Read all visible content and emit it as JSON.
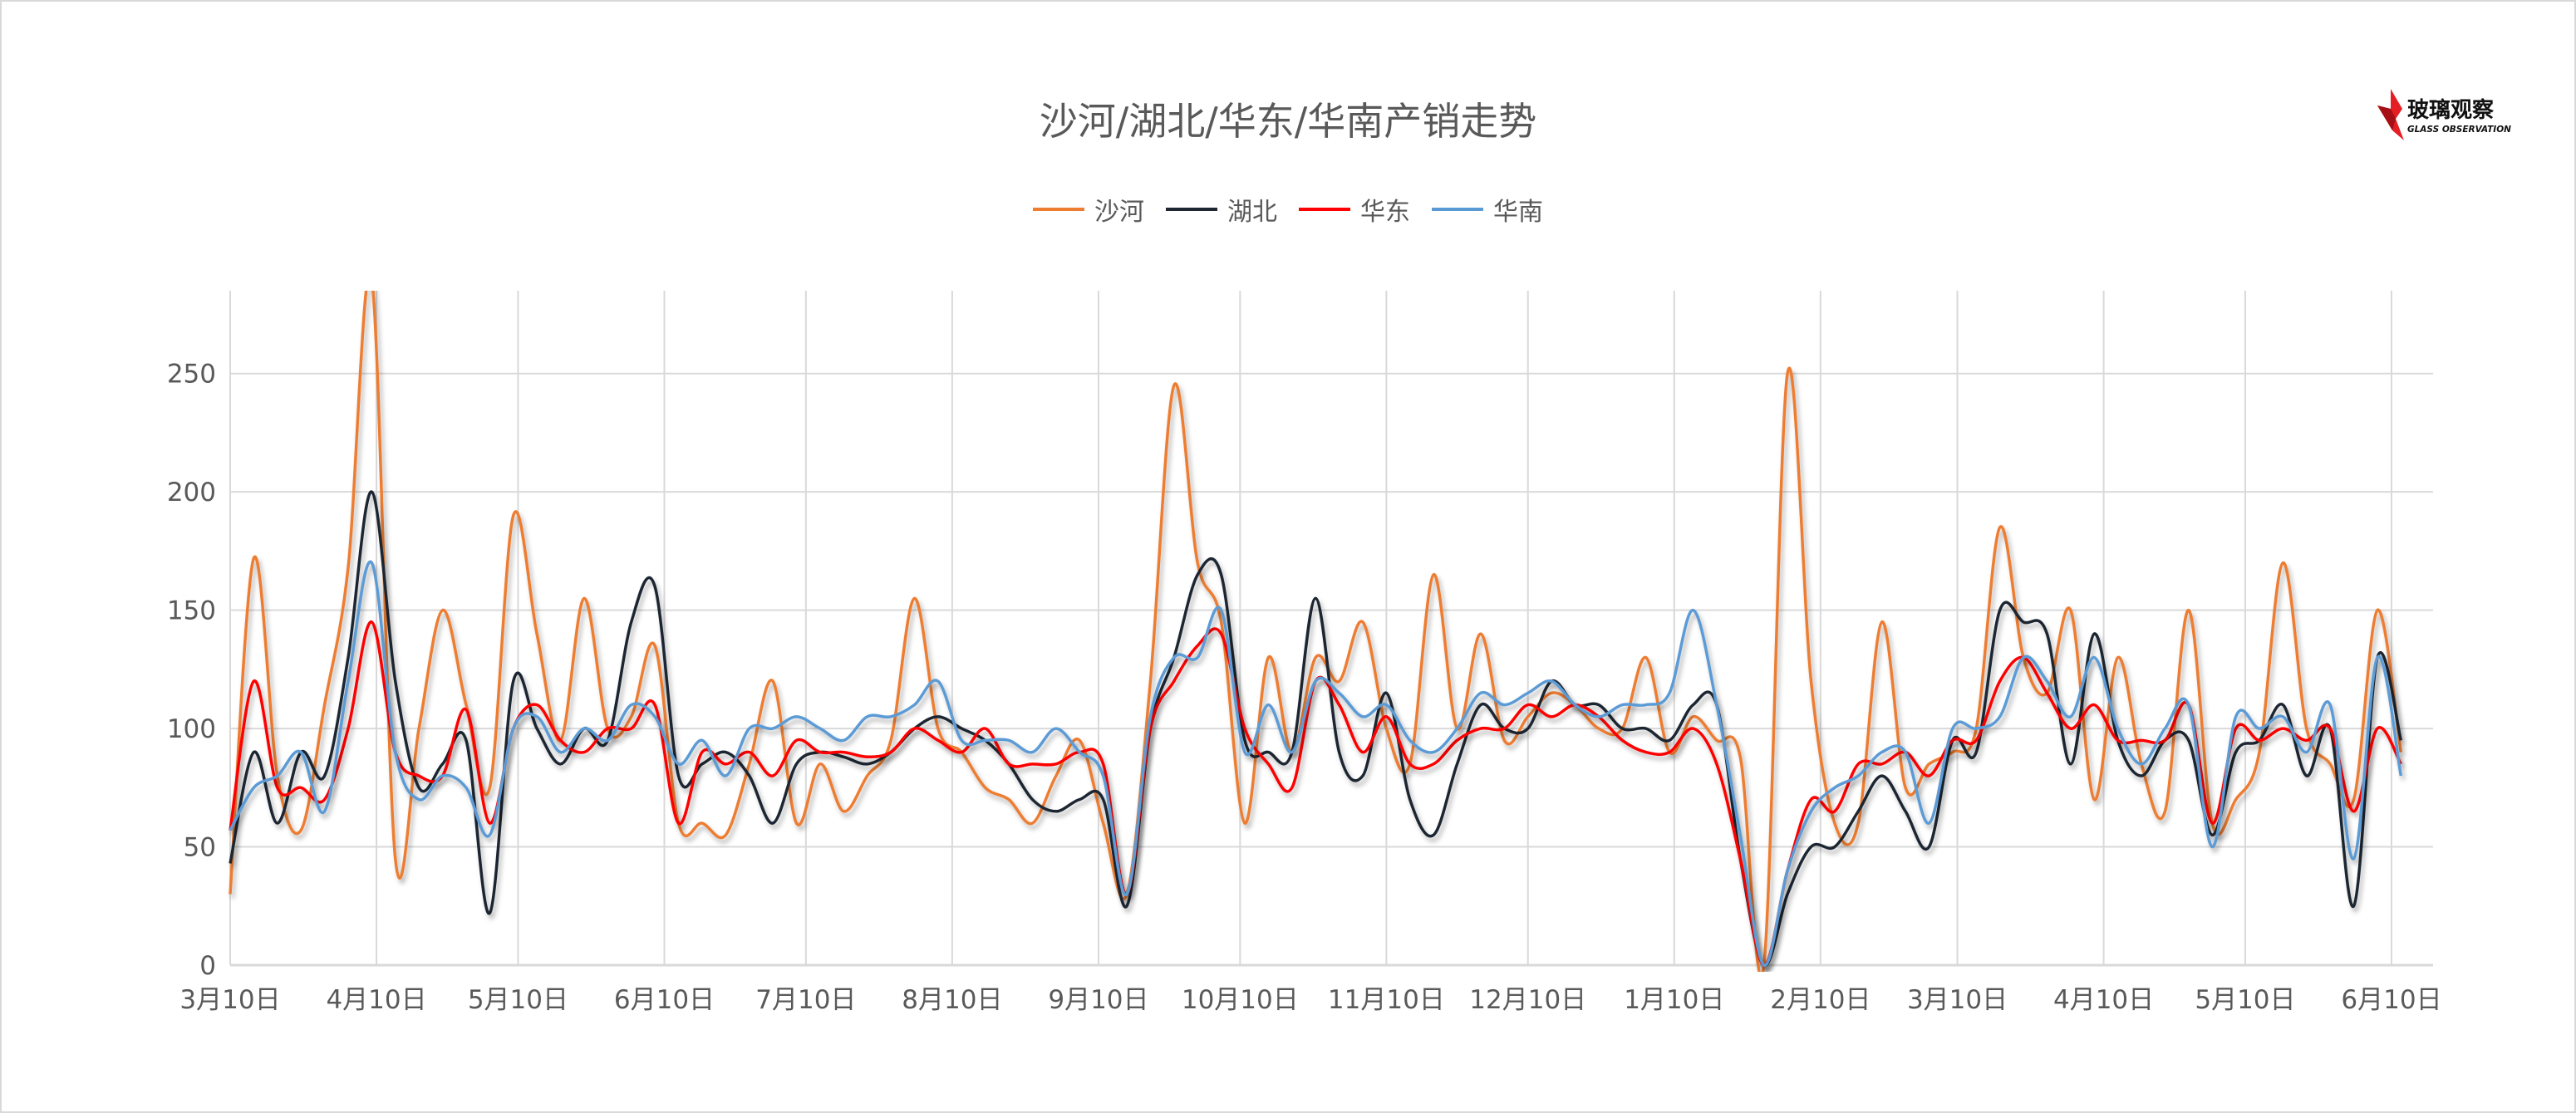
{
  "logo": {
    "text_cn": "玻璃观察",
    "text_en": "GLASS OBSERVATION"
  },
  "chart_data": {
    "type": "line",
    "title": "沙河/湖北/华东/华南产销走势",
    "xlabel": "",
    "ylabel": "",
    "ylim": [
      0,
      285
    ],
    "yticks": [
      0,
      50,
      100,
      150,
      200,
      250
    ],
    "grid": true,
    "legend_position": "top",
    "x_tick_labels": [
      {
        "date": "2023-03-10",
        "label": "3月10日"
      },
      {
        "date": "2023-04-10",
        "label": "4月10日"
      },
      {
        "date": "2023-05-10",
        "label": "5月10日"
      },
      {
        "date": "2023-06-10",
        "label": "6月10日"
      },
      {
        "date": "2023-07-10",
        "label": "7月10日"
      },
      {
        "date": "2023-08-10",
        "label": "8月10日"
      },
      {
        "date": "2023-09-10",
        "label": "9月10日"
      },
      {
        "date": "2023-10-10",
        "label": "10月10日"
      },
      {
        "date": "2023-11-10",
        "label": "11月10日"
      },
      {
        "date": "2023-12-10",
        "label": "12月10日"
      },
      {
        "date": "2024-01-10",
        "label": "1月10日"
      },
      {
        "date": "2024-02-10",
        "label": "2月10日"
      },
      {
        "date": "2024-03-10",
        "label": "3月10日"
      },
      {
        "date": "2024-04-10",
        "label": "4月10日"
      },
      {
        "date": "2024-05-10",
        "label": "5月10日"
      },
      {
        "date": "2024-06-10",
        "label": "6月10日"
      }
    ],
    "x": [
      "2023-03-10",
      "2023-03-15",
      "2023-03-20",
      "2023-03-25",
      "2023-03-30",
      "2023-04-04",
      "2023-04-09",
      "2023-04-14",
      "2023-04-19",
      "2023-04-24",
      "2023-04-29",
      "2023-05-04",
      "2023-05-09",
      "2023-05-14",
      "2023-05-19",
      "2023-05-24",
      "2023-05-29",
      "2023-06-03",
      "2023-06-08",
      "2023-06-13",
      "2023-06-18",
      "2023-06-23",
      "2023-06-28",
      "2023-07-03",
      "2023-07-08",
      "2023-07-13",
      "2023-07-18",
      "2023-07-23",
      "2023-07-28",
      "2023-08-02",
      "2023-08-07",
      "2023-08-12",
      "2023-08-17",
      "2023-08-22",
      "2023-08-27",
      "2023-09-01",
      "2023-09-06",
      "2023-09-11",
      "2023-09-16",
      "2023-09-21",
      "2023-09-26",
      "2023-10-01",
      "2023-10-06",
      "2023-10-11",
      "2023-10-16",
      "2023-10-21",
      "2023-10-26",
      "2023-10-31",
      "2023-11-05",
      "2023-11-10",
      "2023-11-15",
      "2023-11-20",
      "2023-11-25",
      "2023-11-30",
      "2023-12-05",
      "2023-12-10",
      "2023-12-15",
      "2023-12-20",
      "2023-12-25",
      "2023-12-30",
      "2024-01-04",
      "2024-01-09",
      "2024-01-14",
      "2024-01-19",
      "2024-01-24",
      "2024-01-29",
      "2024-02-03",
      "2024-02-08",
      "2024-02-13",
      "2024-02-18",
      "2024-02-23",
      "2024-02-28",
      "2024-03-04",
      "2024-03-09",
      "2024-03-14",
      "2024-03-19",
      "2024-03-24",
      "2024-03-29",
      "2024-04-03",
      "2024-04-08",
      "2024-04-13",
      "2024-04-18",
      "2024-04-23",
      "2024-04-28",
      "2024-05-03",
      "2024-05-08",
      "2024-05-13",
      "2024-05-18",
      "2024-05-23",
      "2024-05-28",
      "2024-06-02",
      "2024-06-07",
      "2024-06-12"
    ],
    "series": [
      {
        "name": "沙河",
        "color": "#ED7D31",
        "values": [
          30,
          172,
          80,
          57,
          110,
          168,
          290,
          45,
          100,
          150,
          110,
          75,
          190,
          140,
          95,
          155,
          100,
          105,
          135,
          60,
          60,
          55,
          85,
          120,
          60,
          85,
          65,
          80,
          95,
          155,
          100,
          90,
          75,
          70,
          60,
          80,
          95,
          60,
          30,
          120,
          245,
          170,
          145,
          60,
          130,
          90,
          130,
          120,
          145,
          100,
          85,
          165,
          100,
          140,
          95,
          105,
          115,
          110,
          100,
          100,
          130,
          90,
          105,
          95,
          88,
          0,
          250,
          120,
          60,
          60,
          145,
          75,
          85,
          90,
          100,
          185,
          130,
          115,
          150,
          70,
          130,
          85,
          65,
          150,
          60,
          70,
          90,
          170,
          100,
          85,
          70,
          150,
          90
        ]
      },
      {
        "name": "湖北",
        "color": "#1F2733",
        "values": [
          43,
          90,
          60,
          90,
          80,
          130,
          200,
          120,
          75,
          85,
          95,
          22,
          120,
          100,
          85,
          100,
          95,
          145,
          160,
          80,
          85,
          90,
          80,
          60,
          85,
          90,
          88,
          85,
          90,
          100,
          105,
          100,
          95,
          85,
          70,
          65,
          70,
          70,
          25,
          100,
          130,
          165,
          165,
          95,
          90,
          90,
          155,
          90,
          80,
          115,
          70,
          55,
          85,
          110,
          100,
          100,
          120,
          110,
          110,
          100,
          100,
          95,
          110,
          110,
          45,
          0,
          30,
          50,
          50,
          65,
          80,
          65,
          50,
          95,
          90,
          150,
          145,
          140,
          85,
          140,
          95,
          80,
          95,
          95,
          55,
          90,
          95,
          110,
          80,
          100,
          25,
          130,
          95
        ]
      },
      {
        "name": "华东",
        "color": "#FF0000",
        "values": [
          57,
          120,
          75,
          75,
          70,
          100,
          145,
          90,
          80,
          80,
          108,
          60,
          100,
          110,
          95,
          90,
          100,
          100,
          110,
          60,
          90,
          85,
          90,
          80,
          95,
          90,
          90,
          88,
          90,
          100,
          95,
          90,
          100,
          85,
          85,
          85,
          90,
          85,
          30,
          100,
          120,
          135,
          140,
          100,
          85,
          75,
          120,
          110,
          90,
          105,
          85,
          85,
          95,
          100,
          100,
          110,
          105,
          110,
          105,
          95,
          90,
          90,
          100,
          85,
          45,
          0,
          40,
          70,
          65,
          85,
          85,
          90,
          80,
          95,
          95,
          120,
          130,
          115,
          100,
          110,
          95,
          95,
          95,
          110,
          60,
          100,
          95,
          100,
          95,
          100,
          65,
          100,
          85
        ]
      },
      {
        "name": "华南",
        "color": "#5B9BD5",
        "values": [
          57,
          75,
          80,
          90,
          65,
          120,
          170,
          90,
          70,
          80,
          75,
          55,
          100,
          105,
          90,
          100,
          95,
          110,
          105,
          85,
          95,
          80,
          100,
          100,
          105,
          100,
          95,
          105,
          105,
          110,
          120,
          95,
          95,
          95,
          90,
          100,
          90,
          80,
          30,
          105,
          130,
          130,
          150,
          90,
          110,
          90,
          120,
          115,
          105,
          110,
          95,
          90,
          100,
          115,
          110,
          115,
          120,
          110,
          105,
          110,
          110,
          115,
          150,
          110,
          55,
          0,
          40,
          65,
          75,
          80,
          90,
          90,
          60,
          100,
          100,
          105,
          130,
          120,
          105,
          130,
          100,
          85,
          100,
          110,
          50,
          105,
          100,
          105,
          90,
          110,
          45,
          130,
          80
        ]
      }
    ]
  }
}
